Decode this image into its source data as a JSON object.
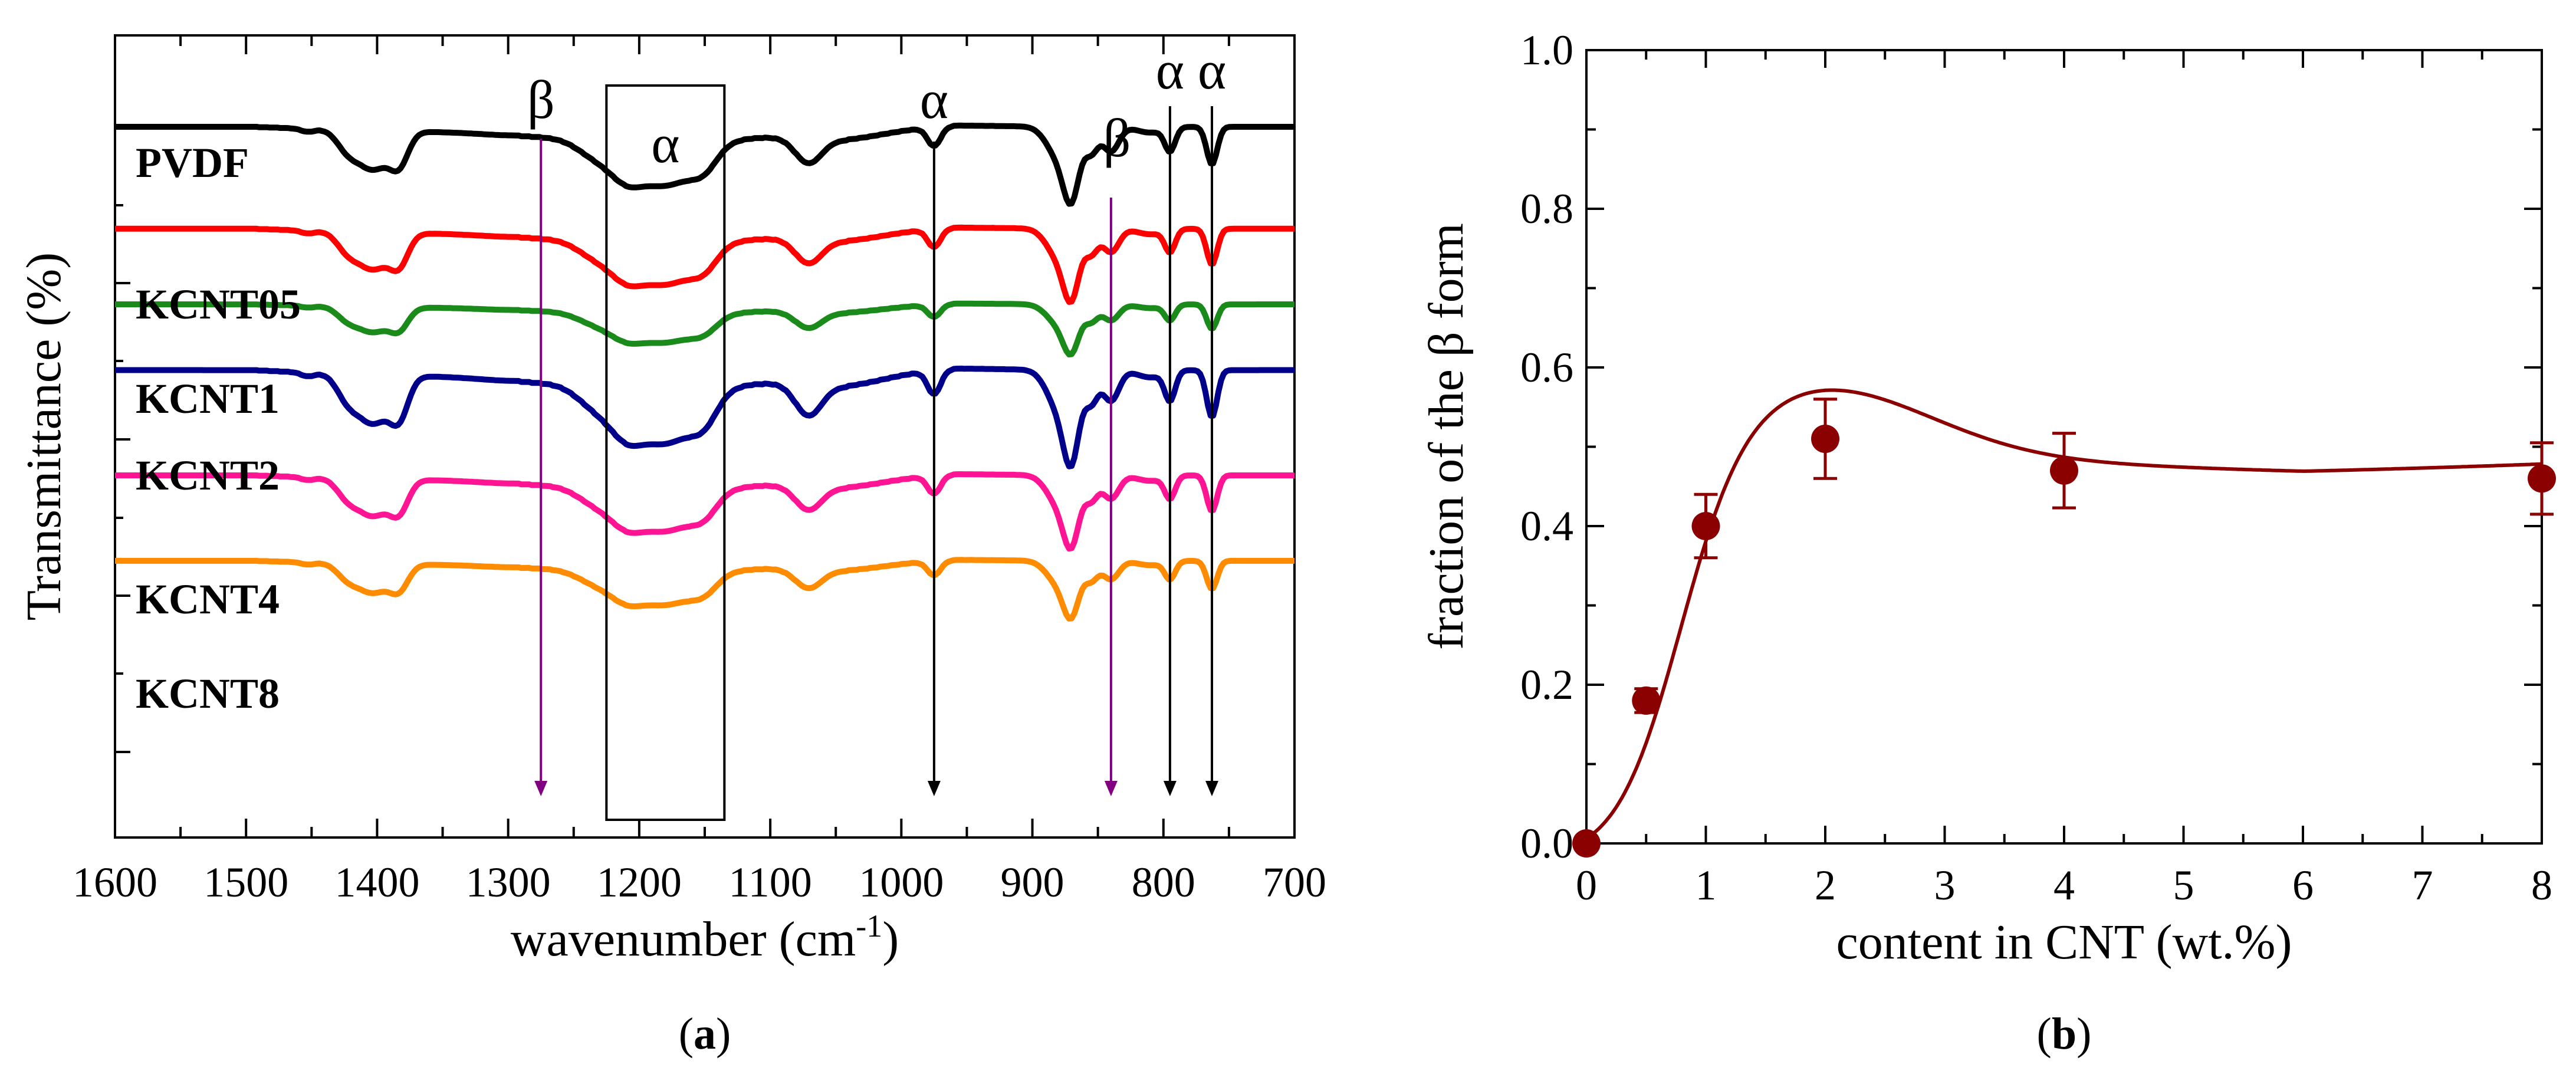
{
  "chart_data": [
    {
      "type": "line",
      "panel": "a",
      "panel_label_open": "(",
      "panel_label_letter": "a",
      "panel_label_close": ")",
      "xlabel": "wavenumber (cm",
      "xlabel_sup": "-1",
      "xlabel_end": ")",
      "ylabel": "Transmittance (%)",
      "xlim": [
        1600,
        700
      ],
      "x_ticks": [
        "1600",
        "1500",
        "1400",
        "1300",
        "1200",
        "1100",
        "1000",
        "900",
        "800",
        "700"
      ],
      "y_ticks_shown": false,
      "series": [
        {
          "name": "PVDF",
          "color": "#000000",
          "offset": 0.0,
          "depth": 1.0
        },
        {
          "name": "KCNT05",
          "color": "#ff0000",
          "offset": 0.155,
          "depth": 0.95
        },
        {
          "name": "KCNT1",
          "color": "#1a8a1a",
          "offset": 0.27,
          "depth": 0.65
        },
        {
          "name": "KCNT2",
          "color": "#00008b",
          "offset": 0.37,
          "depth": 1.25
        },
        {
          "name": "KCNT4",
          "color": "#ff1493",
          "offset": 0.53,
          "depth": 0.95
        },
        {
          "name": "KCNT8",
          "color": "#ff8c00",
          "offset": 0.66,
          "depth": 0.75
        }
      ],
      "band_assignments": [
        {
          "label": "β",
          "wavenumber": 1275,
          "color": "#800080"
        },
        {
          "label": "α",
          "wavenumber_range": [
            1225,
            1135
          ],
          "boxed": true
        },
        {
          "label": "α",
          "wavenumber": 975,
          "color": "#000000"
        },
        {
          "label": "β",
          "wavenumber": 840,
          "color": "#800080"
        },
        {
          "label": "α",
          "wavenumber": 795,
          "color": "#000000"
        },
        {
          "label": "α",
          "wavenumber": 763,
          "color": "#000000"
        }
      ]
    },
    {
      "type": "scatter",
      "panel": "b",
      "panel_label_open": "(",
      "panel_label_letter": "b",
      "panel_label_close": ")",
      "xlabel": "content in CNT (wt.%)",
      "ylabel": "fraction of the β form",
      "xlim": [
        0,
        8
      ],
      "ylim": [
        0,
        1.0
      ],
      "x_ticks": [
        "0",
        "1",
        "2",
        "3",
        "4",
        "5",
        "6",
        "7",
        "8"
      ],
      "y_ticks": [
        "0.0",
        "0.2",
        "0.4",
        "0.6",
        "0.8",
        "1.0"
      ],
      "color": "#8b0000",
      "x": [
        0,
        0.5,
        1,
        2,
        4,
        8
      ],
      "y": [
        0.0,
        0.18,
        0.4,
        0.51,
        0.47,
        0.46
      ],
      "error": [
        0.0,
        0.015,
        0.04,
        0.05,
        0.047,
        0.045
      ],
      "fit_curve": true
    }
  ]
}
